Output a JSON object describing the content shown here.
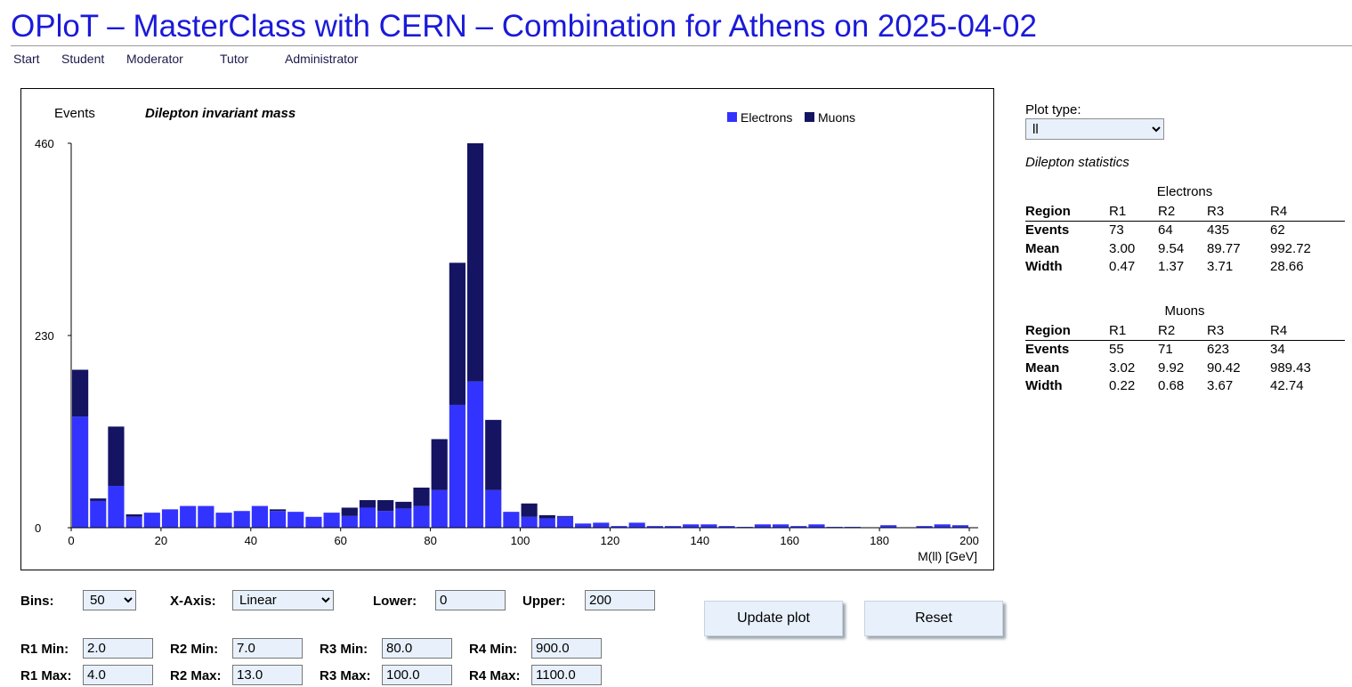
{
  "page": {
    "title": "OPloT – MasterClass with CERN – Combination for Athens on 2025-04-02",
    "nav": [
      "Start",
      "Student",
      "Moderator",
      "Tutor",
      "Administrator"
    ]
  },
  "colors": {
    "title": "#1a1ad9",
    "electrons": "#3333ff",
    "muons": "#141463",
    "input_background": "#e8f1fb"
  },
  "chart_data": {
    "type": "bar",
    "stacked": true,
    "title": "Dilepton invariant mass",
    "ylabel": "Events",
    "xlabel": "M(ll) [GeV]",
    "legend_position": "top-right",
    "grid": false,
    "xlim": [
      0,
      200
    ],
    "ylim": [
      0,
      460
    ],
    "x_ticks": [
      0,
      20,
      40,
      60,
      80,
      100,
      120,
      140,
      160,
      180,
      200
    ],
    "y_ticks": [
      0,
      230,
      460
    ],
    "bin_width": 4,
    "bin_starts": [
      0,
      4,
      8,
      12,
      16,
      20,
      24,
      28,
      32,
      36,
      40,
      44,
      48,
      52,
      56,
      60,
      64,
      68,
      72,
      76,
      80,
      84,
      88,
      92,
      96,
      100,
      104,
      108,
      112,
      116,
      120,
      124,
      128,
      132,
      136,
      140,
      144,
      148,
      152,
      156,
      160,
      164,
      168,
      172,
      176,
      180,
      184,
      188,
      192,
      196
    ],
    "series": [
      {
        "name": "Electrons",
        "color": "#3333ff",
        "values": [
          133,
          32,
          50,
          13,
          18,
          22,
          26,
          26,
          18,
          20,
          26,
          20,
          19,
          13,
          18,
          14,
          24,
          20,
          23,
          26,
          45,
          147,
          175,
          45,
          19,
          13,
          11,
          13,
          5,
          6,
          2,
          6,
          2,
          2,
          4,
          4,
          2,
          1,
          4,
          4,
          2,
          4,
          1,
          1,
          0,
          3,
          0,
          2,
          4,
          3
        ]
      },
      {
        "name": "Muons",
        "color": "#141463",
        "values": [
          56,
          3,
          71,
          3,
          0,
          0,
          0,
          0,
          0,
          0,
          0,
          2,
          0,
          0,
          0,
          10,
          9,
          13,
          8,
          22,
          61,
          170,
          285,
          84,
          0,
          16,
          4,
          1,
          0,
          0,
          0,
          0,
          0,
          0,
          0,
          0,
          0,
          0,
          0,
          0,
          0,
          0,
          0,
          0,
          0,
          0,
          0,
          0,
          0,
          0
        ]
      }
    ]
  },
  "sidebar": {
    "plot_type_label": "Plot type:",
    "plot_type_value": "ll",
    "stats_heading": "Dilepton statistics",
    "electrons": {
      "caption": "Electrons",
      "header": [
        "Region",
        "R1",
        "R2",
        "R3",
        "R4"
      ],
      "rows": [
        [
          "Events",
          "73",
          "64",
          "435",
          "62"
        ],
        [
          "Mean",
          "3.00",
          "9.54",
          "89.77",
          "992.72"
        ],
        [
          "Width",
          "0.47",
          "1.37",
          "3.71",
          "28.66"
        ]
      ]
    },
    "muons": {
      "caption": "Muons",
      "header": [
        "Region",
        "R1",
        "R2",
        "R3",
        "R4"
      ],
      "rows": [
        [
          "Events",
          "55",
          "71",
          "623",
          "34"
        ],
        [
          "Mean",
          "3.02",
          "9.92",
          "90.42",
          "989.43"
        ],
        [
          "Width",
          "0.22",
          "0.68",
          "3.67",
          "42.74"
        ]
      ]
    }
  },
  "controls": {
    "bins_label": "Bins:",
    "bins_value": "50",
    "xaxis_label": "X-Axis:",
    "xaxis_value": "Linear",
    "lower_label": "Lower:",
    "lower_value": "0",
    "upper_label": "Upper:",
    "upper_value": "200",
    "r1_min_label": "R1 Min:",
    "r1_min": "2.0",
    "r2_min_label": "R2 Min:",
    "r2_min": "7.0",
    "r3_min_label": "R3 Min:",
    "r3_min": "80.0",
    "r4_min_label": "R4 Min:",
    "r4_min": "900.0",
    "r1_max_label": "R1 Max:",
    "r1_max": "4.0",
    "r2_max_label": "R2 Max:",
    "r2_max": "13.0",
    "r3_max_label": "R3 Max:",
    "r3_max": "100.0",
    "r4_max_label": "R4 Max:",
    "r4_max": "1100.0",
    "update_label": "Update plot",
    "reset_label": "Reset"
  }
}
